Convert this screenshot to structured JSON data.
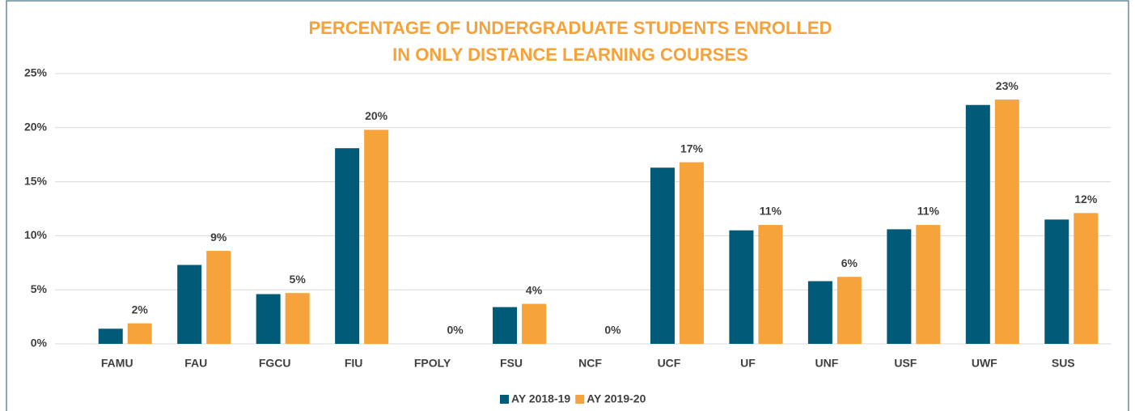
{
  "chart_data": {
    "type": "bar",
    "title": [
      "PERCENTAGE OF UNDERGRADUATE STUDENTS ENROLLED",
      "IN ONLY DISTANCE LEARNING COURSES"
    ],
    "categories": [
      "FAMU",
      "FAU",
      "FGCU",
      "FIU",
      "FPOLY",
      "FSU",
      "NCF",
      "UCF",
      "UF",
      "UNF",
      "USF",
      "UWF",
      "SUS"
    ],
    "series": [
      {
        "name": "AY 2018-19",
        "color": "#005a78",
        "values": [
          1.4,
          7.3,
          4.6,
          18.1,
          0,
          3.4,
          0,
          16.3,
          10.5,
          5.8,
          10.6,
          22.1,
          11.5
        ]
      },
      {
        "name": "AY 2019-20",
        "color": "#f7a33b",
        "values": [
          1.9,
          8.6,
          4.7,
          19.8,
          0,
          3.7,
          0,
          16.8,
          11.0,
          6.2,
          11.0,
          22.6,
          12.1
        ],
        "value_labels": [
          "2%",
          "9%",
          "5%",
          "20%",
          "0%",
          "4%",
          "0%",
          "17%",
          "11%",
          "6%",
          "11%",
          "23%",
          "12%"
        ]
      }
    ],
    "ylim": [
      0,
      25
    ],
    "yticks": [
      {
        "value": 0,
        "label": "0%"
      },
      {
        "value": 5,
        "label": "5%"
      },
      {
        "value": 10,
        "label": "10%"
      },
      {
        "value": 15,
        "label": "15%"
      },
      {
        "value": 20,
        "label": "20%"
      },
      {
        "value": 25,
        "label": "25%"
      }
    ],
    "grid": true,
    "legend": "bottom"
  }
}
